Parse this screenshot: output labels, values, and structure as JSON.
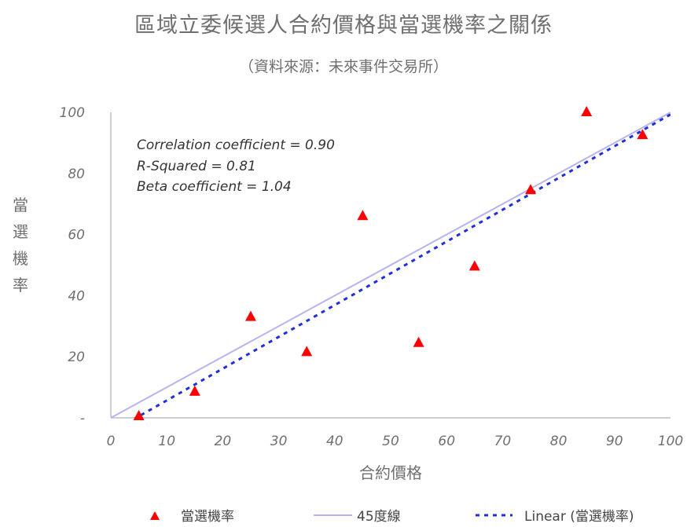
{
  "chart_data": {
    "type": "scatter",
    "title": "區域立委候選人合約價格與當選機率之關係",
    "subtitle": "（資料來源：未來事件交易所）",
    "xlabel": "合約價格",
    "ylabel": "當選機率",
    "xlim": [
      0,
      100
    ],
    "ylim": [
      0,
      100
    ],
    "x_ticks": [
      "0",
      "10",
      "20",
      "30",
      "40",
      "50",
      "60",
      "70",
      "80",
      "90",
      "100"
    ],
    "y_ticks": [
      "-",
      "20",
      "40",
      "60",
      "80",
      "100"
    ],
    "grid": false,
    "legend_position": "bottom",
    "series": [
      {
        "name": "當選機率",
        "kind": "scatter",
        "color": "#ff0000",
        "x": [
          5,
          15,
          25,
          35,
          45,
          55,
          65,
          75,
          85,
          95
        ],
        "y": [
          0.5,
          8.5,
          33,
          21.5,
          66,
          24.5,
          49.5,
          74.5,
          100,
          92.5
        ]
      },
      {
        "name": "45度線",
        "kind": "line",
        "color": "#b6b3f0",
        "x": [
          0,
          100
        ],
        "y": [
          0,
          100
        ]
      },
      {
        "name": "Linear (當選機率)",
        "kind": "dashed-line",
        "color": "#1f2fe0",
        "x": [
          0,
          100
        ],
        "y": [
          -4.7,
          99.3
        ]
      }
    ],
    "annotations": [
      "Correlation coefficient = 0.90",
      "R-Squared = 0.81",
      "Beta coefficient = 1.04"
    ]
  }
}
